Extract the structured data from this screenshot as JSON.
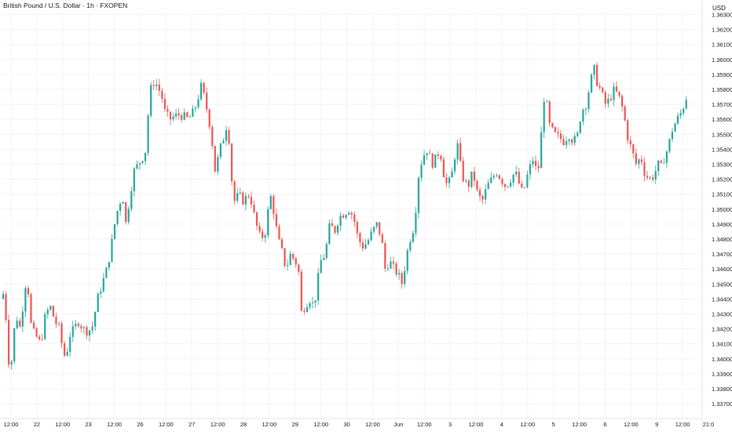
{
  "header": {
    "title": "British Pound / U.S. Dollar · 1h · FXOPEN",
    "currency": "USD"
  },
  "colors": {
    "up": "#26a69a",
    "down": "#ef5350",
    "grid": "#f0f3fa",
    "text": "#131722",
    "axis_line": "#e0e3eb"
  },
  "chart_data": {
    "type": "candlestick",
    "title": "British Pound / U.S. Dollar · 1h · FXOPEN",
    "currency": "USD",
    "ylim": [
      1.3365,
      1.3635
    ],
    "y_ticks": [
      "1.36300",
      "1.36200",
      "1.36100",
      "1.36000",
      "1.35900",
      "1.35800",
      "1.35700",
      "1.35600",
      "1.35500",
      "1.35400",
      "1.35300",
      "1.35200",
      "1.35100",
      "1.35000",
      "1.34900",
      "1.34800",
      "1.34700",
      "1.34600",
      "1.34500",
      "1.34400",
      "1.34300",
      "1.34200",
      "1.34100",
      "1.34000",
      "1.33900",
      "1.33800",
      "1.33700"
    ],
    "x_ticks": [
      "12:00",
      "22",
      "12:00",
      "23",
      "12:00",
      "26",
      "12:00",
      "27",
      "12:00",
      "28",
      "12:00",
      "29",
      "12:00",
      "30",
      "12:00",
      "Jun",
      "12:00",
      "3",
      "12:00",
      "4",
      "12:00",
      "5",
      "12:00",
      "6",
      "12:00",
      "9",
      "12:00",
      "21:0"
    ],
    "grid": true,
    "path_points": [
      [
        0,
        1.344
      ],
      [
        6,
        1.3445
      ],
      [
        10,
        1.34
      ],
      [
        14,
        1.3395
      ],
      [
        20,
        1.343
      ],
      [
        26,
        1.342
      ],
      [
        32,
        1.345
      ],
      [
        36,
        1.3445
      ],
      [
        40,
        1.342
      ],
      [
        46,
        1.3415
      ],
      [
        52,
        1.341
      ],
      [
        58,
        1.343
      ],
      [
        64,
        1.3435
      ],
      [
        70,
        1.3425
      ],
      [
        76,
        1.342
      ],
      [
        80,
        1.3405
      ],
      [
        84,
        1.34
      ],
      [
        88,
        1.3415
      ],
      [
        94,
        1.342
      ],
      [
        100,
        1.3425
      ],
      [
        106,
        1.342
      ],
      [
        112,
        1.3418
      ],
      [
        118,
        1.3422
      ],
      [
        124,
        1.344
      ],
      [
        130,
        1.345
      ],
      [
        136,
        1.346
      ],
      [
        140,
        1.347
      ],
      [
        146,
        1.349
      ],
      [
        150,
        1.35
      ],
      [
        156,
        1.351
      ],
      [
        160,
        1.349
      ],
      [
        166,
        1.351
      ],
      [
        170,
        1.3525
      ],
      [
        176,
        1.353
      ],
      [
        182,
        1.3535
      ],
      [
        186,
        1.354
      ],
      [
        190,
        1.3575
      ],
      [
        194,
        1.3585
      ],
      [
        200,
        1.3583
      ],
      [
        206,
        1.3575
      ],
      [
        210,
        1.3565
      ],
      [
        216,
        1.356
      ],
      [
        222,
        1.3562
      ],
      [
        228,
        1.3563
      ],
      [
        234,
        1.3562
      ],
      [
        240,
        1.356
      ],
      [
        246,
        1.3565
      ],
      [
        250,
        1.357
      ],
      [
        256,
        1.3582
      ],
      [
        260,
        1.3575
      ],
      [
        266,
        1.356
      ],
      [
        270,
        1.3545
      ],
      [
        274,
        1.3525
      ],
      [
        280,
        1.354
      ],
      [
        286,
        1.355
      ],
      [
        290,
        1.356
      ],
      [
        294,
        1.3525
      ],
      [
        298,
        1.3505
      ],
      [
        304,
        1.351
      ],
      [
        310,
        1.3505
      ],
      [
        316,
        1.351
      ],
      [
        320,
        1.3505
      ],
      [
        326,
        1.349
      ],
      [
        332,
        1.348
      ],
      [
        338,
        1.3485
      ],
      [
        344,
        1.351
      ],
      [
        348,
        1.35
      ],
      [
        354,
        1.348
      ],
      [
        360,
        1.347
      ],
      [
        364,
        1.346
      ],
      [
        370,
        1.347
      ],
      [
        376,
        1.3465
      ],
      [
        380,
        1.346
      ],
      [
        384,
        1.343
      ],
      [
        388,
        1.3435
      ],
      [
        394,
        1.344
      ],
      [
        400,
        1.3435
      ],
      [
        404,
        1.345
      ],
      [
        408,
        1.3465
      ],
      [
        414,
        1.347
      ],
      [
        420,
        1.349
      ],
      [
        426,
        1.3485
      ],
      [
        432,
        1.3495
      ],
      [
        438,
        1.3497
      ],
      [
        444,
        1.35
      ],
      [
        450,
        1.3495
      ],
      [
        456,
        1.348
      ],
      [
        462,
        1.3475
      ],
      [
        468,
        1.3478
      ],
      [
        474,
        1.3485
      ],
      [
        480,
        1.349
      ],
      [
        486,
        1.348
      ],
      [
        490,
        1.346
      ],
      [
        496,
        1.3465
      ],
      [
        502,
        1.346
      ],
      [
        508,
        1.3455
      ],
      [
        512,
        1.345
      ],
      [
        518,
        1.347
      ],
      [
        522,
        1.348
      ],
      [
        528,
        1.349
      ],
      [
        532,
        1.352
      ],
      [
        538,
        1.3535
      ],
      [
        544,
        1.354
      ],
      [
        550,
        1.353
      ],
      [
        556,
        1.3535
      ],
      [
        560,
        1.354
      ],
      [
        566,
        1.352
      ],
      [
        570,
        1.3515
      ],
      [
        576,
        1.3525
      ],
      [
        582,
        1.3545
      ],
      [
        586,
        1.353
      ],
      [
        590,
        1.352
      ],
      [
        596,
        1.3515
      ],
      [
        602,
        1.3525
      ],
      [
        608,
        1.351
      ],
      [
        614,
        1.3505
      ],
      [
        620,
        1.3515
      ],
      [
        626,
        1.352
      ],
      [
        632,
        1.3525
      ],
      [
        638,
        1.352
      ],
      [
        644,
        1.3515
      ],
      [
        650,
        1.352
      ],
      [
        656,
        1.3525
      ],
      [
        662,
        1.3515
      ],
      [
        666,
        1.351
      ],
      [
        670,
        1.352
      ],
      [
        676,
        1.353
      ],
      [
        680,
        1.3535
      ],
      [
        684,
        1.352
      ],
      [
        688,
        1.354
      ],
      [
        692,
        1.3575
      ],
      [
        696,
        1.357
      ],
      [
        700,
        1.3555
      ],
      [
        706,
        1.355
      ],
      [
        712,
        1.3548
      ],
      [
        718,
        1.3545
      ],
      [
        724,
        1.355
      ],
      [
        730,
        1.3545
      ],
      [
        736,
        1.355
      ],
      [
        740,
        1.3565
      ],
      [
        746,
        1.357
      ],
      [
        750,
        1.358
      ],
      [
        756,
        1.3595
      ],
      [
        760,
        1.3585
      ],
      [
        766,
        1.3578
      ],
      [
        770,
        1.357
      ],
      [
        776,
        1.3573
      ],
      [
        782,
        1.358
      ],
      [
        788,
        1.3575
      ],
      [
        794,
        1.3565
      ],
      [
        798,
        1.355
      ],
      [
        804,
        1.354
      ],
      [
        810,
        1.353
      ],
      [
        816,
        1.3535
      ],
      [
        820,
        1.3525
      ],
      [
        826,
        1.352
      ],
      [
        832,
        1.3522
      ],
      [
        838,
        1.353
      ],
      [
        842,
        1.3528
      ],
      [
        846,
        1.3535
      ],
      [
        850,
        1.354
      ],
      [
        856,
        1.3553
      ],
      [
        862,
        1.356
      ],
      [
        868,
        1.3565
      ],
      [
        874,
        1.3575
      ]
    ]
  }
}
